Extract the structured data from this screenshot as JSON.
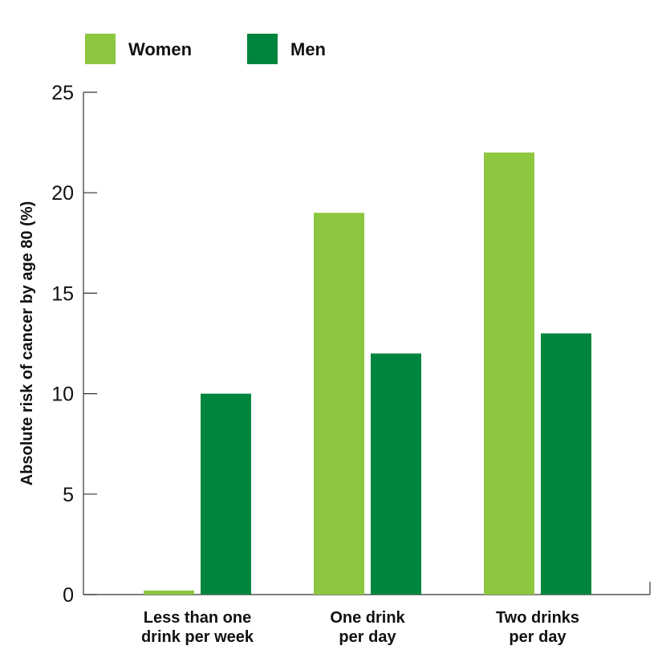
{
  "chart_data": {
    "type": "bar",
    "title": "",
    "xlabel": "",
    "ylabel": "Absolute risk of cancer by age 80 (%)",
    "ylim": [
      0,
      25
    ],
    "yticks": [
      0,
      5,
      10,
      15,
      20,
      25
    ],
    "categories": [
      [
        "Less than one",
        "drink per week"
      ],
      [
        "One drink",
        "per day"
      ],
      [
        "Two drinks",
        "per day"
      ]
    ],
    "series": [
      {
        "name": "Women",
        "color": "#8dc63f",
        "values": [
          0.2,
          19,
          22
        ]
      },
      {
        "name": "Men",
        "color": "#00853e",
        "values": [
          10,
          12,
          13
        ]
      }
    ],
    "legend_position": "top-left",
    "grid": false
  }
}
